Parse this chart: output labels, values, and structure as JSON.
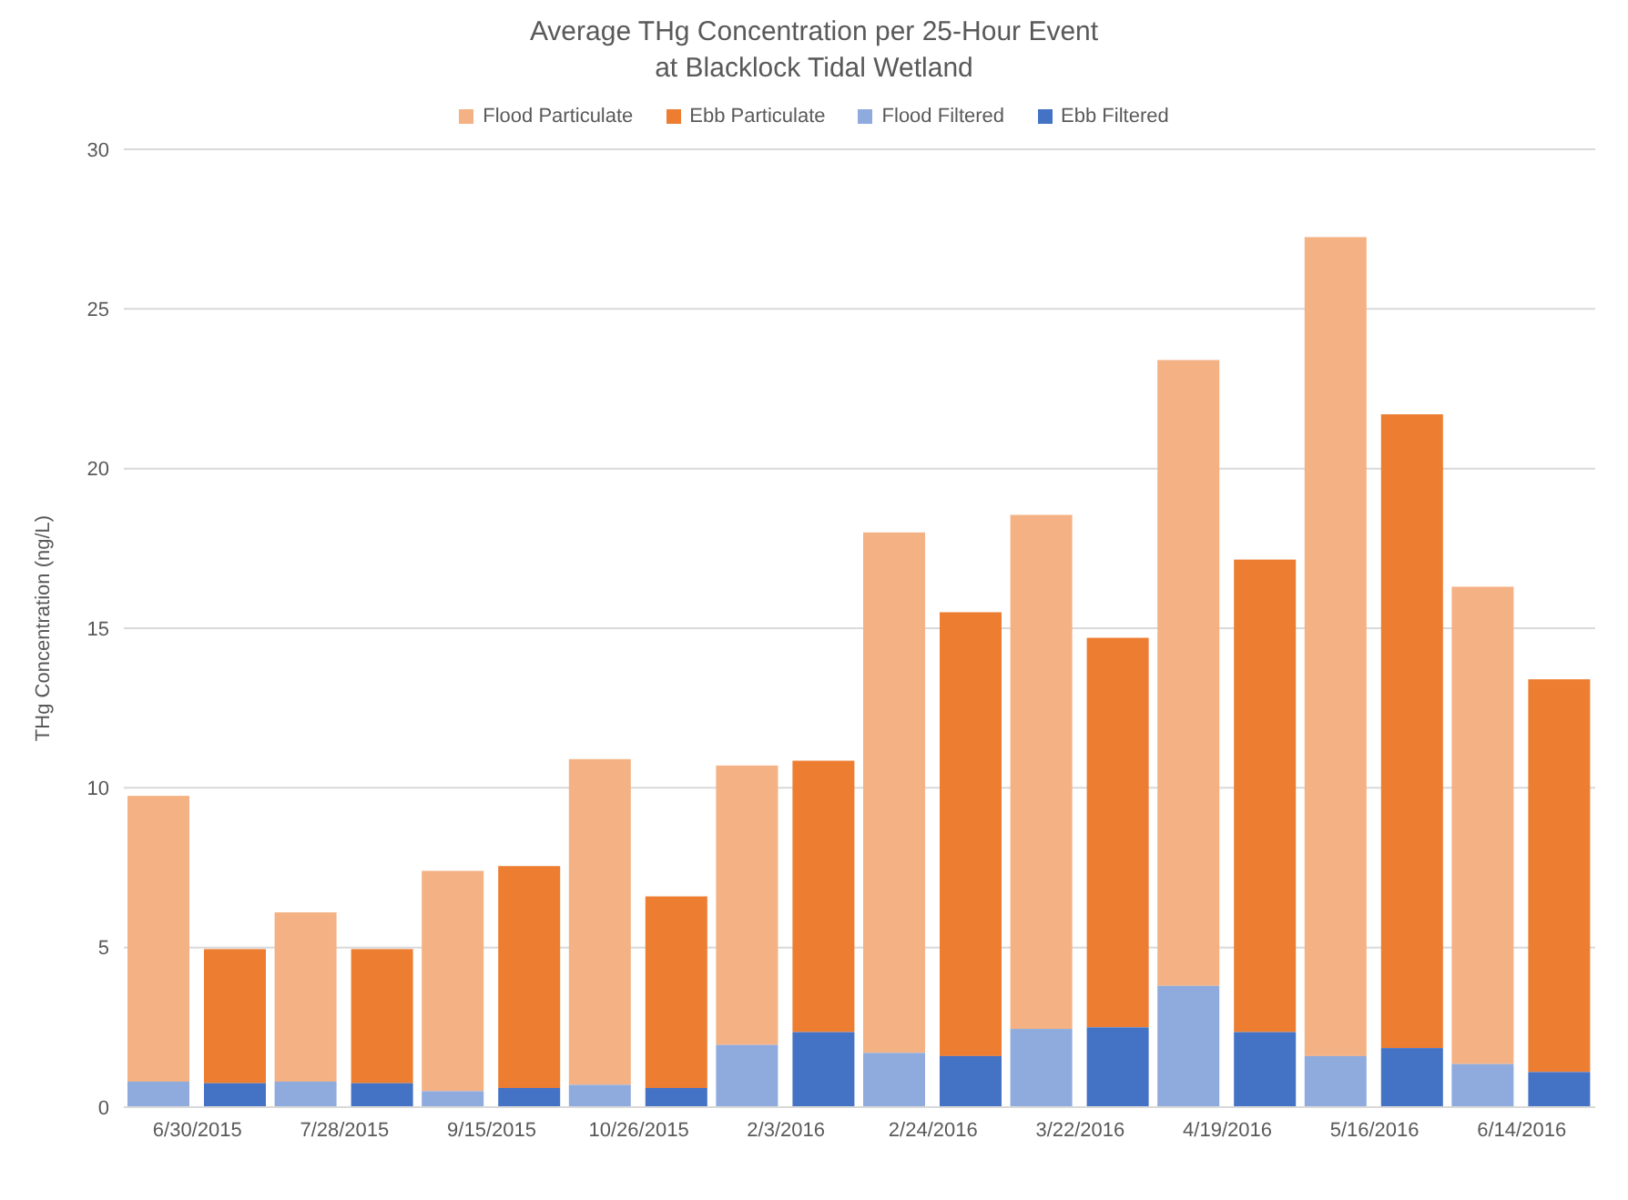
{
  "chart_data": {
    "type": "bar",
    "title": "Average THg Concentration per 25-Hour Event\nat Blacklock Tidal Wetland",
    "ylabel": "THg Concentration (ng/L)",
    "categories": [
      "6/30/2015",
      "7/28/2015",
      "9/15/2015",
      "10/26/2015",
      "2/3/2016",
      "2/24/2016",
      "3/22/2016",
      "4/19/2016",
      "5/16/2016",
      "6/14/2016"
    ],
    "series": [
      {
        "name": "Flood Particulate",
        "color": "#f4b183",
        "base": [
          0.8,
          0.8,
          0.5,
          0.7,
          1.95,
          1.7,
          2.45,
          3.8,
          1.6,
          1.35
        ],
        "values": [
          8.95,
          5.3,
          6.9,
          10.2,
          8.75,
          16.3,
          16.1,
          19.6,
          25.65,
          14.95
        ]
      },
      {
        "name": "Ebb Particulate",
        "color": "#ed7d31",
        "base": [
          0.75,
          0.75,
          0.6,
          0.6,
          2.35,
          1.6,
          2.5,
          2.35,
          1.85,
          1.1
        ],
        "values": [
          4.2,
          4.2,
          6.95,
          6.0,
          8.5,
          13.9,
          12.2,
          14.8,
          19.85,
          12.3
        ]
      },
      {
        "name": "Flood Filtered",
        "color": "#8faadc",
        "values": [
          0.8,
          0.8,
          0.5,
          0.7,
          1.95,
          1.7,
          2.45,
          3.8,
          1.6,
          1.35
        ]
      },
      {
        "name": "Ebb Filtered",
        "color": "#4472c4",
        "values": [
          0.75,
          0.75,
          0.6,
          0.6,
          2.35,
          1.6,
          2.5,
          2.35,
          1.85,
          1.1
        ]
      }
    ],
    "ylim": [
      0,
      30
    ],
    "yticks": [
      0,
      5,
      10,
      15,
      20,
      25,
      30
    ],
    "grid": "y",
    "legend": "top"
  }
}
